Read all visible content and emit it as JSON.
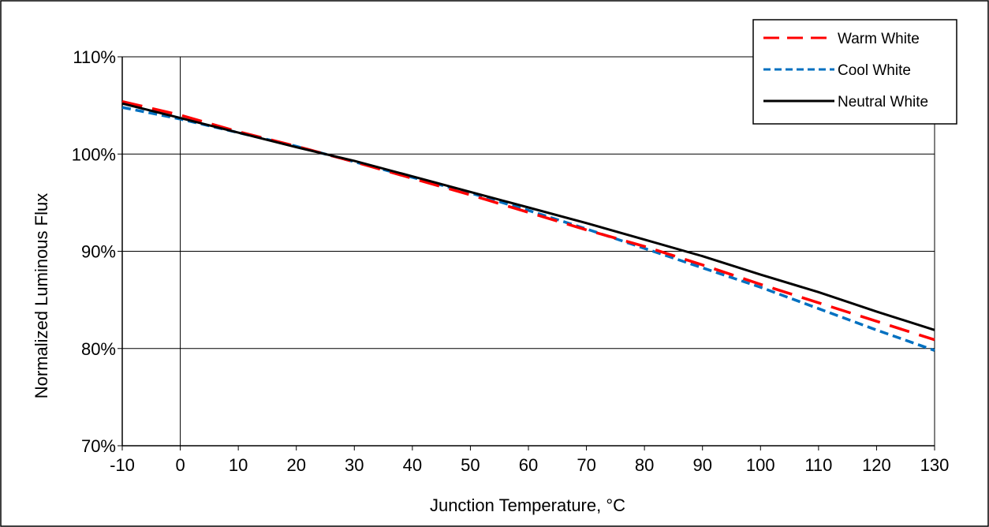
{
  "chart_data": {
    "type": "line",
    "title": "",
    "xlabel": "Junction Temperature, °C",
    "ylabel": "Normalized Luminous Flux",
    "xlim": [
      -10,
      130
    ],
    "ylim": [
      70,
      110
    ],
    "x_ticks": [
      "-10",
      "0",
      "10",
      "20",
      "30",
      "40",
      "50",
      "60",
      "70",
      "80",
      "90",
      "100",
      "110",
      "120",
      "130"
    ],
    "y_ticks": [
      "70%",
      "80%",
      "90%",
      "100%",
      "110%"
    ],
    "grid": "horizontal",
    "legend_position": "top-right",
    "x": [
      -10,
      0,
      10,
      20,
      25,
      30,
      40,
      50,
      60,
      70,
      80,
      90,
      100,
      110,
      120,
      130
    ],
    "series": [
      {
        "name": "Warm White",
        "color": "#ff0000",
        "style": "long-dash",
        "values": [
          105.4,
          104.0,
          102.3,
          100.8,
          100.0,
          99.2,
          97.5,
          95.8,
          94.0,
          92.2,
          90.5,
          88.6,
          86.6,
          84.7,
          82.8,
          80.9
        ]
      },
      {
        "name": "Cool White",
        "color": "#0070c0",
        "style": "short-dash",
        "values": [
          104.8,
          103.6,
          102.2,
          100.8,
          100.0,
          99.2,
          97.6,
          96.0,
          94.2,
          92.3,
          90.3,
          88.3,
          86.3,
          84.1,
          81.9,
          79.8
        ]
      },
      {
        "name": "Neutral White",
        "color": "#000000",
        "style": "solid",
        "values": [
          105.2,
          103.7,
          102.2,
          100.7,
          100.0,
          99.3,
          97.7,
          96.1,
          94.5,
          92.9,
          91.2,
          89.5,
          87.6,
          85.8,
          83.8,
          81.9
        ]
      }
    ]
  }
}
